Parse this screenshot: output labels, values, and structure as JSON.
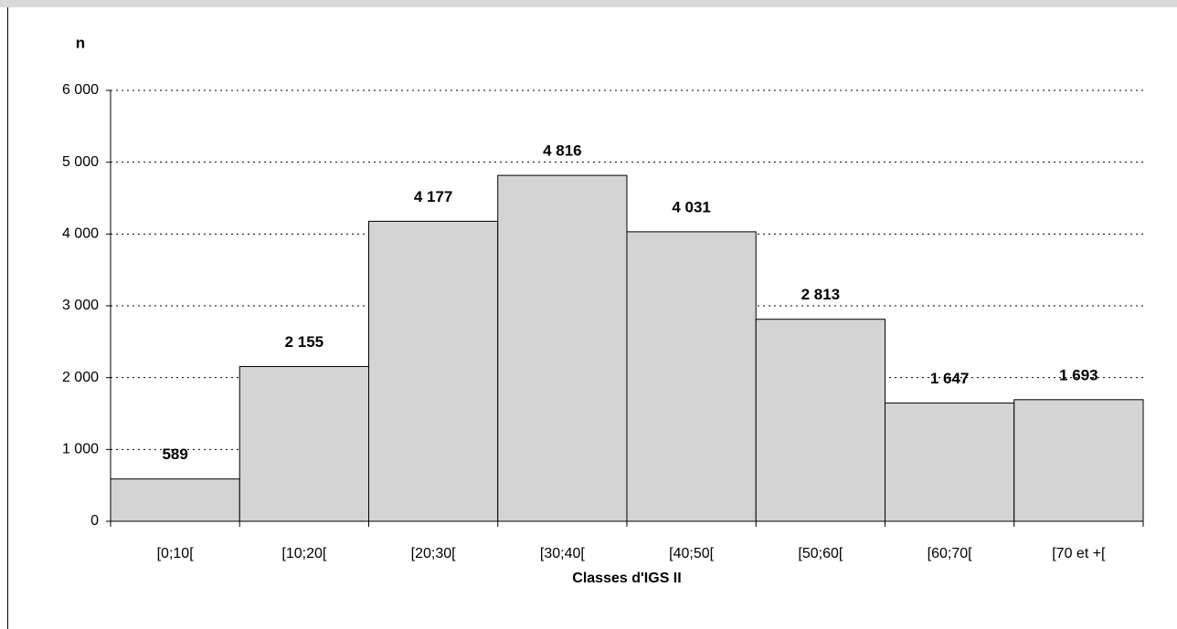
{
  "chart_data": {
    "type": "bar",
    "y_label": "n",
    "x_label": "Classes d'IGS II",
    "categories": [
      "[0;10[",
      "[10;20[",
      "[20;30[",
      "[30;40[",
      "[40;50[",
      "[50;60[",
      "[60;70[",
      "[70 et +["
    ],
    "values": [
      589,
      2155,
      4177,
      4816,
      4031,
      2813,
      1647,
      1693
    ],
    "value_labels": [
      "589",
      "2 155",
      "4 177",
      "4 816",
      "4 031",
      "2 813",
      "1 647",
      "1 693"
    ],
    "color": "#d4d4d4",
    "ylim": [
      0,
      6000
    ],
    "yticks": [
      0,
      {
        "value": 1000,
        "label": "1 000"
      },
      {
        "value": 2000,
        "label": "2 000"
      },
      {
        "value": 3000,
        "label": "3 000"
      },
      {
        "value": 4000,
        "label": "4 000"
      },
      {
        "value": 5000,
        "label": "5 000"
      },
      {
        "value": 6000,
        "label": "6 000"
      }
    ],
    "grid": true
  }
}
